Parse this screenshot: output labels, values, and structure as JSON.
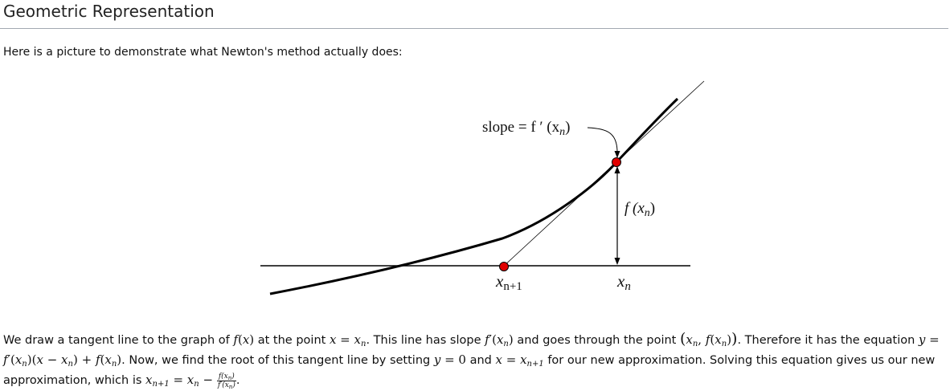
{
  "section": {
    "title": "Geometric Representation",
    "intro": "Here is a picture to demonstrate what Newton's method actually does:"
  },
  "figure": {
    "slope_label": "slope = f ′ (x",
    "slope_sub": "n",
    "slope_close": ")",
    "fx_label": "f (x",
    "fx_sub": "n",
    "fx_close": ")",
    "xnp1_label": "x",
    "xnp1_sub": "n+1",
    "xn_label": "x",
    "xn_sub": "n",
    "point_color": "#e00000",
    "curve_color": "#000000"
  },
  "paragraph": {
    "t1": "We draw a tangent line to the graph of ",
    "t2": " at the point ",
    "t3": ". This line has slope ",
    "t4": " and goes through the point ",
    "t5": ". Therefore it has the equation ",
    "t6": ". Now, we find the root of this tangent line by setting ",
    "t7": " and ",
    "t8": " for our new approximation. Solving this equation gives us our new approximation, which is ",
    "t9": "."
  }
}
